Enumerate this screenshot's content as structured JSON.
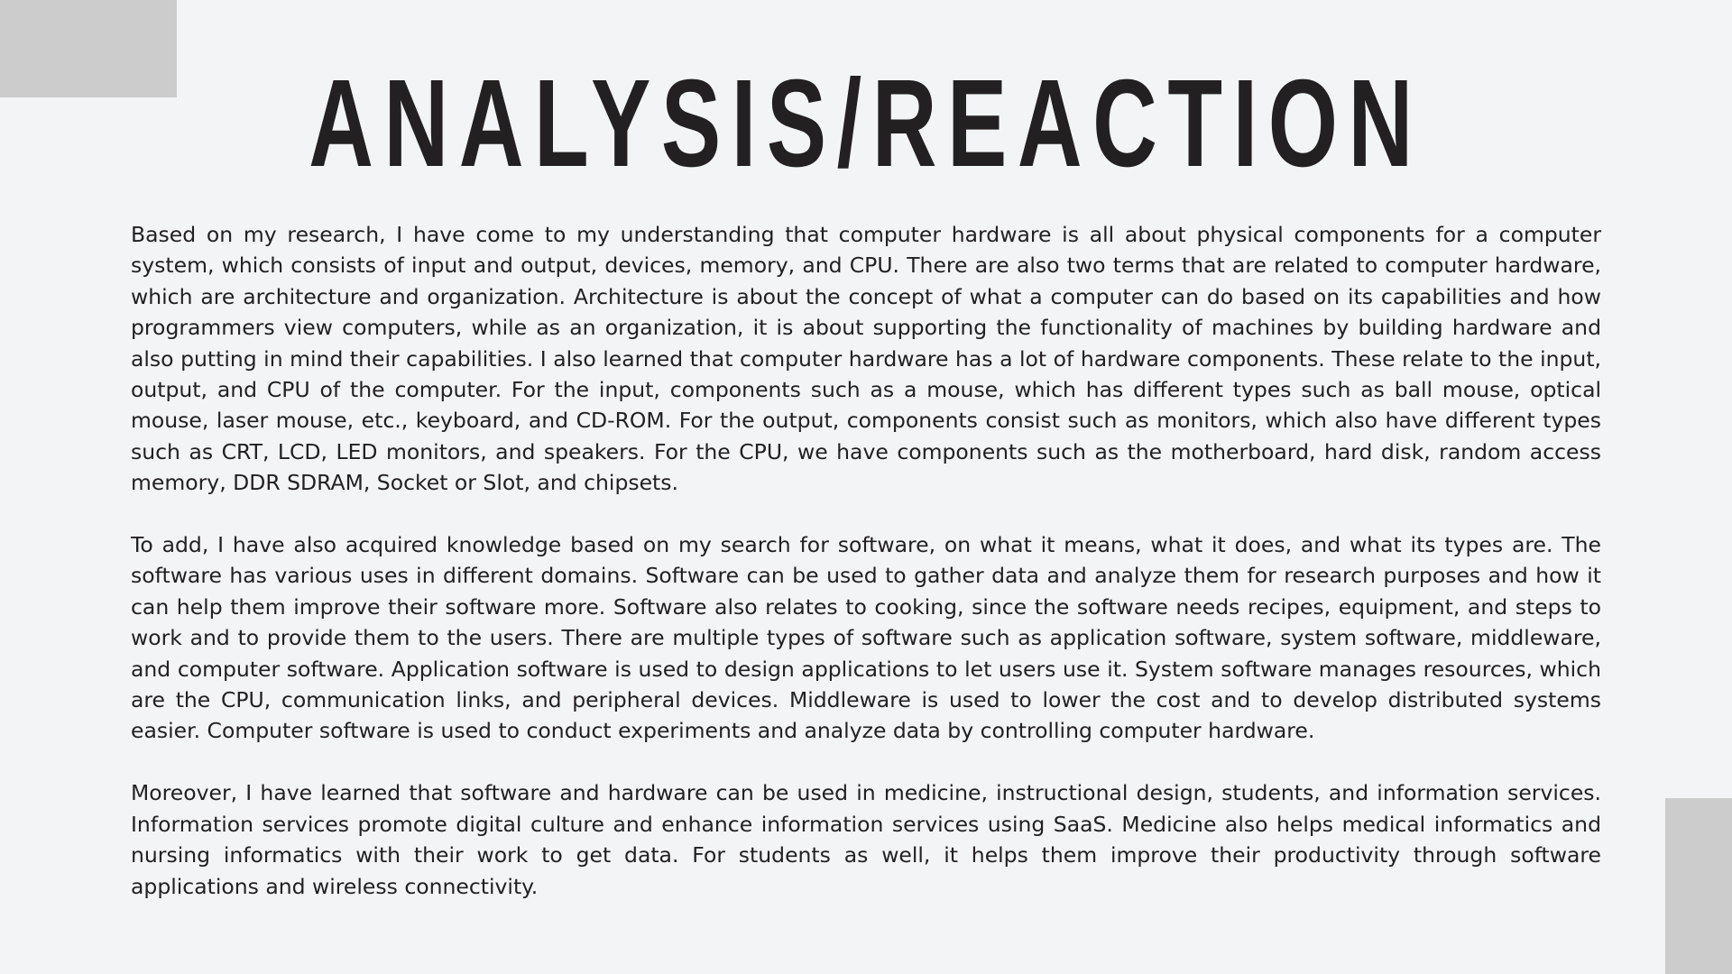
{
  "title": "ANALYSIS/REACTION",
  "paragraphs": [
    "Based on my research, I have come to my understanding that computer hardware is all about physical components for a computer system, which consists of input and output, devices, memory, and CPU. There are also two terms that are related to computer hardware, which are architecture and organization. Architecture is about the concept of what a computer can do based on its capabilities and how programmers view computers, while as an organization, it is about supporting the functionality of machines by building hardware and also putting in mind their capabilities. I also learned that computer hardware has a lot of hardware components. These relate to the input, output, and CPU of the computer. For the input, components such as a mouse, which has different types such as ball mouse, optical mouse, laser mouse, etc., keyboard, and CD-ROM. For the output, components consist such as monitors, which also have different types such as CRT, LCD, LED monitors, and speakers. For the CPU, we have components such as the motherboard, hard disk, random access memory, DDR SDRAM, Socket or Slot, and chipsets.",
    "To add, I have also acquired knowledge based on my search for software, on what it means, what it does, and what its types are. The software has various uses in different domains. Software can be used to gather data and analyze them for research purposes and how it can help them improve their software more. Software also relates to cooking, since the software needs recipes, equipment, and steps to work and to provide them to the users. There are multiple types of software such as application software, system software, middleware, and computer software. Application software is used to design applications to let users use it. System software manages resources, which are the CPU, communication links, and peripheral devices. Middleware is used to lower the cost and to develop distributed systems easier. Computer software is used to conduct experiments and analyze data by controlling computer hardware.",
    "Moreover, I have learned that software and hardware can be used in medicine, instructional design, students, and information services. Information services promote digital culture and enhance information services using SaaS. Medicine also helps medical informatics and nursing informatics with their work to get data. For students as well, it helps them improve their productivity through software applications and wireless connectivity."
  ],
  "colors": {
    "background": "#f2f4f6",
    "text": "#232021",
    "corner_blocks": "#cccccc"
  }
}
